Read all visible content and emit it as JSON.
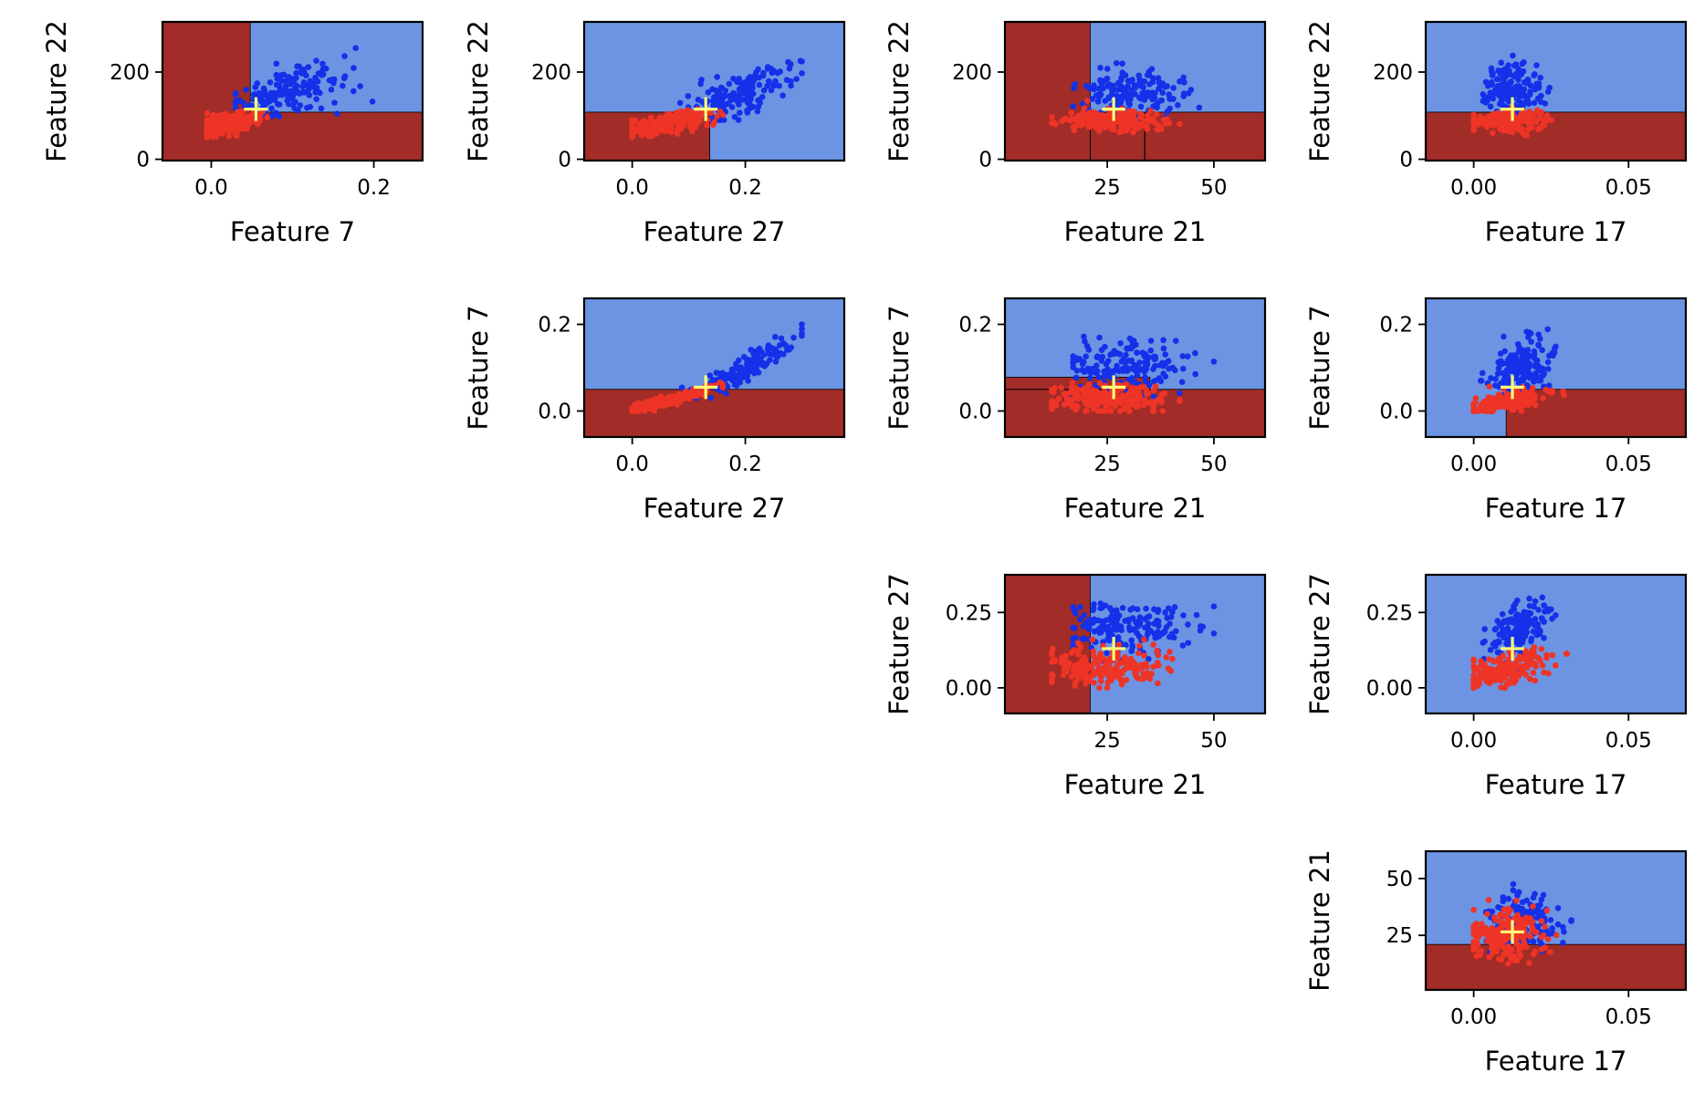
{
  "colors": {
    "region_class_a": "#6c94e3",
    "region_class_b": "#a12c28",
    "points_class_a": "#1430e8",
    "points_class_b": "#ee3426",
    "marker": "#ffff7a",
    "boundary": "#000000"
  },
  "marker_icon": "plus-marker",
  "chart_data": [
    {
      "type": "scatter",
      "xlabel": "Feature 7",
      "ylabel": "Feature 22",
      "xlim": [
        -0.06,
        0.26
      ],
      "ylim": [
        -3,
        315
      ],
      "xticks": [
        {
          "v": 0.0,
          "label": "0.0"
        },
        {
          "v": 0.2,
          "label": "0.2"
        }
      ],
      "yticks": [
        {
          "v": 0,
          "label": "0"
        },
        {
          "v": 200,
          "label": "200"
        }
      ],
      "marker": {
        "x": 0.055,
        "y": 115
      },
      "regions": [
        {
          "x0": -0.06,
          "x1": 0.26,
          "y0": -3,
          "y1": 315,
          "cls": "b"
        },
        {
          "x0": 0.048,
          "x1": 0.26,
          "y0": 108,
          "y1": 315,
          "cls": "a"
        }
      ],
      "series_a": {
        "cx": 0.09,
        "cy": 150,
        "sx": 0.035,
        "sy": 28,
        "slope": 500,
        "n": 170,
        "seed": 1,
        "xr": [
          0.03,
          0.2
        ],
        "yr": [
          95,
          255
        ]
      },
      "series_b": {
        "cx": 0.02,
        "cy": 82,
        "sx": 0.02,
        "sy": 12,
        "slope": 300,
        "n": 190,
        "seed": 2,
        "xr": [
          -0.005,
          0.085
        ],
        "yr": [
          50,
          135
        ]
      }
    },
    {
      "type": "scatter",
      "xlabel": "Feature 27",
      "ylabel": "Feature 22",
      "xlim": [
        -0.085,
        0.375
      ],
      "ylim": [
        -3,
        315
      ],
      "xticks": [
        {
          "v": 0.0,
          "label": "0.0"
        },
        {
          "v": 0.2,
          "label": "0.2"
        }
      ],
      "yticks": [
        {
          "v": 0,
          "label": "0"
        },
        {
          "v": 200,
          "label": "200"
        }
      ],
      "marker": {
        "x": 0.13,
        "y": 115
      },
      "regions": [
        {
          "x0": -0.085,
          "x1": 0.375,
          "y0": -3,
          "y1": 315,
          "cls": "a"
        },
        {
          "x0": -0.085,
          "x1": 0.137,
          "y0": -3,
          "y1": 108,
          "cls": "b"
        }
      ],
      "series_a": {
        "cx": 0.19,
        "cy": 150,
        "sx": 0.05,
        "sy": 30,
        "slope": 480,
        "n": 170,
        "seed": 3,
        "xr": [
          0.08,
          0.3
        ],
        "yr": [
          90,
          255
        ]
      },
      "series_b": {
        "cx": 0.06,
        "cy": 82,
        "sx": 0.04,
        "sy": 12,
        "slope": 240,
        "n": 190,
        "seed": 4,
        "xr": [
          0.0,
          0.17
        ],
        "yr": [
          50,
          135
        ]
      }
    },
    {
      "type": "scatter",
      "xlabel": "Feature 21",
      "ylabel": "Feature 22",
      "xlim": [
        1,
        62
      ],
      "ylim": [
        -3,
        315
      ],
      "xticks": [
        {
          "v": 25,
          "label": "25"
        },
        {
          "v": 50,
          "label": "50"
        }
      ],
      "yticks": [
        {
          "v": 0,
          "label": "0"
        },
        {
          "v": 200,
          "label": "200"
        }
      ],
      "marker": {
        "x": 26.5,
        "y": 115
      },
      "regions": [
        {
          "x0": 1,
          "x1": 62,
          "y0": -3,
          "y1": 315,
          "cls": "a"
        },
        {
          "x0": 1,
          "x1": 21,
          "y0": -3,
          "y1": 315,
          "cls": "b"
        },
        {
          "x0": 21,
          "x1": 62,
          "y0": -3,
          "y1": 108,
          "cls": "b"
        }
      ],
      "boundary_lines": [
        [
          33.8,
          -3,
          33.8,
          108
        ]
      ],
      "series_a": {
        "cx": 30,
        "cy": 150,
        "sx": 6,
        "sy": 28,
        "slope": 0,
        "n": 170,
        "seed": 5,
        "xr": [
          17,
          52
        ],
        "yr": [
          95,
          255
        ]
      },
      "series_b": {
        "cx": 26,
        "cy": 88,
        "sx": 6,
        "sy": 12,
        "slope": 0,
        "n": 200,
        "seed": 6,
        "xr": [
          12,
          43
        ],
        "yr": [
          55,
          135
        ]
      }
    },
    {
      "type": "scatter",
      "xlabel": "Feature 17",
      "ylabel": "Feature 22",
      "xlim": [
        -0.0155,
        0.0685
      ],
      "ylim": [
        -3,
        315
      ],
      "xticks": [
        {
          "v": 0.0,
          "label": "0.00"
        },
        {
          "v": 0.05,
          "label": "0.05"
        }
      ],
      "yticks": [
        {
          "v": 0,
          "label": "0"
        },
        {
          "v": 200,
          "label": "200"
        }
      ],
      "marker": {
        "x": 0.0125,
        "y": 115
      },
      "regions": [
        {
          "x0": -0.0155,
          "x1": 0.0685,
          "y0": -3,
          "y1": 315,
          "cls": "a"
        },
        {
          "x0": -0.0155,
          "x1": 0.0685,
          "y0": -3,
          "y1": 108,
          "cls": "b"
        }
      ],
      "series_a": {
        "cx": 0.013,
        "cy": 160,
        "sx": 0.005,
        "sy": 30,
        "slope": 0,
        "n": 170,
        "seed": 7,
        "xr": [
          0.003,
          0.04
        ],
        "yr": [
          95,
          255
        ]
      },
      "series_b": {
        "cx": 0.011,
        "cy": 88,
        "sx": 0.006,
        "sy": 12,
        "slope": 0,
        "n": 190,
        "seed": 8,
        "xr": [
          0.0,
          0.053
        ],
        "yr": [
          55,
          135
        ]
      }
    },
    {
      "type": "scatter",
      "xlabel": "Feature 27",
      "ylabel": "Feature 7",
      "xlim": [
        -0.085,
        0.375
      ],
      "ylim": [
        -0.06,
        0.26
      ],
      "xticks": [
        {
          "v": 0.0,
          "label": "0.0"
        },
        {
          "v": 0.2,
          "label": "0.2"
        }
      ],
      "yticks": [
        {
          "v": 0.0,
          "label": "0.0"
        },
        {
          "v": 0.2,
          "label": "0.2"
        }
      ],
      "marker": {
        "x": 0.13,
        "y": 0.055
      },
      "regions": [
        {
          "x0": -0.085,
          "x1": 0.375,
          "y0": -0.06,
          "y1": 0.26,
          "cls": "a"
        },
        {
          "x0": -0.085,
          "x1": 0.375,
          "y0": -0.06,
          "y1": 0.05,
          "cls": "b"
        }
      ],
      "series_a": {
        "cx": 0.2,
        "cy": 0.1,
        "sx": 0.05,
        "sy": 0.015,
        "slope": 0.7,
        "n": 170,
        "seed": 9,
        "xr": [
          0.08,
          0.3
        ],
        "yr": [
          0.03,
          0.2
        ]
      },
      "series_b": {
        "cx": 0.06,
        "cy": 0.022,
        "sx": 0.04,
        "sy": 0.006,
        "slope": 0.35,
        "n": 190,
        "seed": 10,
        "xr": [
          0.0,
          0.16
        ],
        "yr": [
          0.0,
          0.08
        ]
      }
    },
    {
      "type": "scatter",
      "xlabel": "Feature 21",
      "ylabel": "Feature 7",
      "xlim": [
        1,
        62
      ],
      "ylim": [
        -0.06,
        0.26
      ],
      "xticks": [
        {
          "v": 25,
          "label": "25"
        },
        {
          "v": 50,
          "label": "50"
        }
      ],
      "yticks": [
        {
          "v": 0.0,
          "label": "0.0"
        },
        {
          "v": 0.2,
          "label": "0.2"
        }
      ],
      "marker": {
        "x": 26.5,
        "y": 0.055
      },
      "regions": [
        {
          "x0": 1,
          "x1": 62,
          "y0": -0.06,
          "y1": 0.26,
          "cls": "a"
        },
        {
          "x0": 1,
          "x1": 62,
          "y0": -0.06,
          "y1": 0.05,
          "cls": "b"
        },
        {
          "x0": 1,
          "x1": 35,
          "y0": 0.05,
          "y1": 0.078,
          "cls": "b"
        }
      ],
      "series_a": {
        "cx": 29,
        "cy": 0.1,
        "sx": 7,
        "sy": 0.035,
        "slope": 0,
        "n": 180,
        "seed": 11,
        "xr": [
          17,
          50
        ],
        "yr": [
          0.03,
          0.2
        ]
      },
      "series_b": {
        "cx": 25,
        "cy": 0.03,
        "sx": 7,
        "sy": 0.016,
        "slope": 0,
        "n": 200,
        "seed": 12,
        "xr": [
          12,
          42
        ],
        "yr": [
          0.0,
          0.09
        ]
      }
    },
    {
      "type": "scatter",
      "xlabel": "Feature 17",
      "ylabel": "Feature 7",
      "xlim": [
        -0.0155,
        0.0685
      ],
      "ylim": [
        -0.06,
        0.26
      ],
      "xticks": [
        {
          "v": 0.0,
          "label": "0.00"
        },
        {
          "v": 0.05,
          "label": "0.05"
        }
      ],
      "yticks": [
        {
          "v": 0.0,
          "label": "0.0"
        },
        {
          "v": 0.2,
          "label": "0.2"
        }
      ],
      "marker": {
        "x": 0.0125,
        "y": 0.055
      },
      "regions": [
        {
          "x0": -0.0155,
          "x1": 0.0685,
          "y0": -0.06,
          "y1": 0.26,
          "cls": "a"
        },
        {
          "x0": 0.0105,
          "x1": 0.0685,
          "y0": -0.06,
          "y1": 0.05,
          "cls": "b"
        }
      ],
      "series_a": {
        "cx": 0.015,
        "cy": 0.1,
        "sx": 0.005,
        "sy": 0.035,
        "slope": 3,
        "n": 170,
        "seed": 13,
        "xr": [
          0.002,
          0.04
        ],
        "yr": [
          0.02,
          0.2
        ]
      },
      "series_b": {
        "cx": 0.01,
        "cy": 0.02,
        "sx": 0.006,
        "sy": 0.012,
        "slope": 1.5,
        "n": 190,
        "seed": 14,
        "xr": [
          0.0,
          0.053
        ],
        "yr": [
          0.0,
          0.08
        ]
      }
    },
    {
      "type": "scatter",
      "xlabel": "Feature 21",
      "ylabel": "Feature 27",
      "xlim": [
        1,
        62
      ],
      "ylim": [
        -0.085,
        0.375
      ],
      "xticks": [
        {
          "v": 25,
          "label": "25"
        },
        {
          "v": 50,
          "label": "50"
        }
      ],
      "yticks": [
        {
          "v": 0.0,
          "label": "0.00"
        },
        {
          "v": 0.25,
          "label": "0.25"
        }
      ],
      "marker": {
        "x": 26.5,
        "y": 0.13
      },
      "regions": [
        {
          "x0": 1,
          "x1": 62,
          "y0": -0.085,
          "y1": 0.375,
          "cls": "a"
        },
        {
          "x0": 1,
          "x1": 21,
          "y0": -0.085,
          "y1": 0.375,
          "cls": "b"
        }
      ],
      "series_a": {
        "cx": 29,
        "cy": 0.2,
        "sx": 7,
        "sy": 0.04,
        "slope": 0,
        "n": 180,
        "seed": 15,
        "xr": [
          17,
          50
        ],
        "yr": [
          0.09,
          0.3
        ]
      },
      "series_b": {
        "cx": 25,
        "cy": 0.07,
        "sx": 7,
        "sy": 0.03,
        "slope": 0,
        "n": 200,
        "seed": 16,
        "xr": [
          12,
          43
        ],
        "yr": [
          0.0,
          0.16
        ]
      }
    },
    {
      "type": "scatter",
      "xlabel": "Feature 17",
      "ylabel": "Feature 27",
      "xlim": [
        -0.0155,
        0.0685
      ],
      "ylim": [
        -0.085,
        0.375
      ],
      "xticks": [
        {
          "v": 0.0,
          "label": "0.00"
        },
        {
          "v": 0.05,
          "label": "0.05"
        }
      ],
      "yticks": [
        {
          "v": 0.0,
          "label": "0.00"
        },
        {
          "v": 0.25,
          "label": "0.25"
        }
      ],
      "marker": {
        "x": 0.0125,
        "y": 0.13
      },
      "regions": [
        {
          "x0": -0.0155,
          "x1": 0.0685,
          "y0": -0.085,
          "y1": 0.375,
          "cls": "a"
        }
      ],
      "series_a": {
        "cx": 0.015,
        "cy": 0.2,
        "sx": 0.005,
        "sy": 0.04,
        "slope": 4,
        "n": 170,
        "seed": 17,
        "xr": [
          0.003,
          0.04
        ],
        "yr": [
          0.05,
          0.3
        ]
      },
      "series_b": {
        "cx": 0.01,
        "cy": 0.06,
        "sx": 0.007,
        "sy": 0.025,
        "slope": 3,
        "n": 190,
        "seed": 18,
        "xr": [
          0.0,
          0.053
        ],
        "yr": [
          0.0,
          0.17
        ]
      }
    },
    {
      "type": "scatter",
      "xlabel": "Feature 17",
      "ylabel": "Feature 21",
      "xlim": [
        -0.0155,
        0.0685
      ],
      "ylim": [
        1,
        62
      ],
      "xticks": [
        {
          "v": 0.0,
          "label": "0.00"
        },
        {
          "v": 0.05,
          "label": "0.05"
        }
      ],
      "yticks": [
        {
          "v": 25,
          "label": "25"
        },
        {
          "v": 50,
          "label": "50"
        }
      ],
      "marker": {
        "x": 0.0125,
        "y": 26.5
      },
      "regions": [
        {
          "x0": -0.0155,
          "x1": 0.0685,
          "y0": 1,
          "y1": 62,
          "cls": "a"
        },
        {
          "x0": -0.0155,
          "x1": 0.0685,
          "y0": 1,
          "y1": 21,
          "cls": "b"
        }
      ],
      "series_a": {
        "cx": 0.016,
        "cy": 30,
        "sx": 0.006,
        "sy": 6,
        "slope": 0,
        "n": 160,
        "seed": 19,
        "xr": [
          0.003,
          0.04
        ],
        "yr": [
          17,
          50
        ]
      },
      "series_b": {
        "cx": 0.01,
        "cy": 25,
        "sx": 0.006,
        "sy": 6,
        "slope": 0,
        "n": 200,
        "seed": 20,
        "xr": [
          0.0,
          0.053
        ],
        "yr": [
          12,
          43
        ]
      }
    }
  ]
}
